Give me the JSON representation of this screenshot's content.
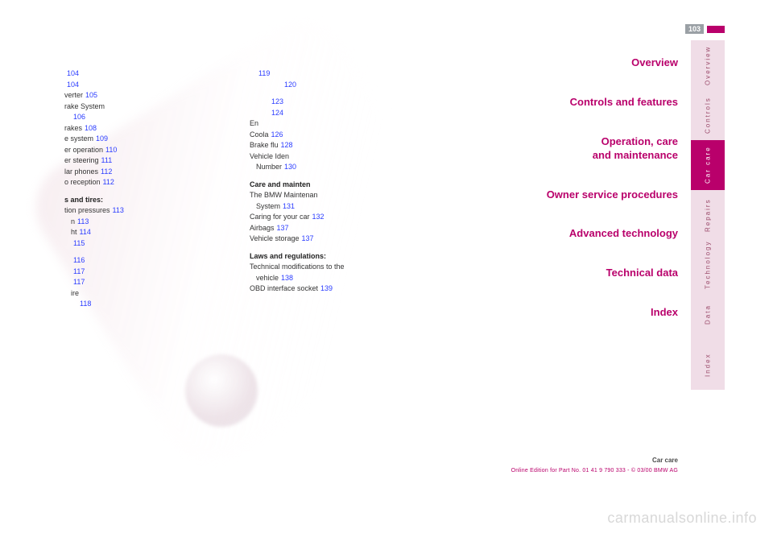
{
  "pageNumber": "103",
  "col1": [
    {
      "text": "",
      "pg": "104",
      "indent": 0
    },
    {
      "text": "",
      "pg": "104",
      "indent": 0
    },
    {
      "text": "verter",
      "pg": "105",
      "indent": 0
    },
    {
      "text": "rake System",
      "pg": "",
      "indent": 0
    },
    {
      "text": "",
      "pg": "106",
      "indent": 1
    },
    {
      "text": "rakes",
      "pg": "108",
      "indent": 0
    },
    {
      "text": "e system",
      "pg": "109",
      "indent": 0
    },
    {
      "text": "er operation",
      "pg": "110",
      "indent": 0
    },
    {
      "text": "er steering",
      "pg": "111",
      "indent": 0
    },
    {
      "text": "lar phones",
      "pg": "112",
      "indent": 0
    },
    {
      "text": "o reception",
      "pg": "112",
      "indent": 0
    },
    {
      "spacer": true
    },
    {
      "text": "s and tires:",
      "pg": "",
      "indent": 0,
      "bold": true
    },
    {
      "text": "tion pressures",
      "pg": "113",
      "indent": 0
    },
    {
      "text": "n",
      "pg": "113",
      "indent": 1
    },
    {
      "text": "ht",
      "pg": "114",
      "indent": 1
    },
    {
      "text": "",
      "pg": "115",
      "indent": 1
    },
    {
      "spacer": true
    },
    {
      "text": "",
      "pg": "116",
      "indent": 1
    },
    {
      "text": "",
      "pg": "117",
      "indent": 1
    },
    {
      "text": "",
      "pg": "117",
      "indent": 1
    },
    {
      "text": "ire",
      "pg": "",
      "indent": 1
    },
    {
      "text": "",
      "pg": "118",
      "indent": 2
    }
  ],
  "col2": [
    {
      "text": "",
      "pg": "119",
      "indent": 1
    },
    {
      "text": "",
      "pg": "120",
      "indent": 5
    },
    {
      "spacer": true
    },
    {
      "text": "",
      "pg": "123",
      "indent": 3
    },
    {
      "text": "",
      "pg": "124",
      "indent": 3
    },
    {
      "text": "En",
      "pg": "",
      "indent": 0
    },
    {
      "text": "Coola",
      "pg": "126",
      "indent": 0
    },
    {
      "text": "Brake flu",
      "pg": "128",
      "indent": 0
    },
    {
      "text": "Vehicle Iden",
      "pg": "",
      "indent": 0
    },
    {
      "text": "Number",
      "pg": "130",
      "indent": 1
    },
    {
      "spacer": true
    },
    {
      "text": "Care and mainten",
      "pg": "",
      "indent": 0,
      "bold": true
    },
    {
      "text": "The BMW Maintenan",
      "pg": "",
      "indent": 0
    },
    {
      "text": "System",
      "pg": "131",
      "indent": 1
    },
    {
      "text": "Caring for your car",
      "pg": "132",
      "indent": 0
    },
    {
      "text": "Airbags",
      "pg": "137",
      "indent": 0
    },
    {
      "text": "Vehicle storage",
      "pg": "137",
      "indent": 0
    },
    {
      "spacer": true
    },
    {
      "text": "Laws and regulations:",
      "pg": "",
      "indent": 0,
      "bold": true
    },
    {
      "text": "Technical modifications to the",
      "pg": "",
      "indent": 0
    },
    {
      "text": "vehicle",
      "pg": "138",
      "indent": 1
    },
    {
      "text": "OBD interface socket",
      "pg": "139",
      "indent": 0
    }
  ],
  "headings": [
    {
      "title": "Overview"
    },
    {
      "title": "Controls and features"
    },
    {
      "title": "Operation, care",
      "title2": "and maintenance"
    },
    {
      "title": "Owner service procedures"
    },
    {
      "title": "Advanced technology"
    },
    {
      "title": "Technical data"
    },
    {
      "title": "Index"
    }
  ],
  "tabs": [
    {
      "label": "Overview",
      "active": false
    },
    {
      "label": "Controls",
      "active": false
    },
    {
      "label": "Car care",
      "active": true
    },
    {
      "label": "Repairs",
      "active": false
    },
    {
      "label": "Technology",
      "active": false
    },
    {
      "label": "Data",
      "active": false
    },
    {
      "label": "Index",
      "active": false
    }
  ],
  "footer": {
    "label": "Car care",
    "note": "Online Edition for Part No. 01 41 9 790 333 - © 03/00 BMW AG"
  },
  "watermark": "carmanualsonline.info",
  "colors": {
    "accent": "#b9006b",
    "link": "#2a3cff",
    "tabBg": "#f0dde7",
    "tabText": "#9a4a6a"
  }
}
